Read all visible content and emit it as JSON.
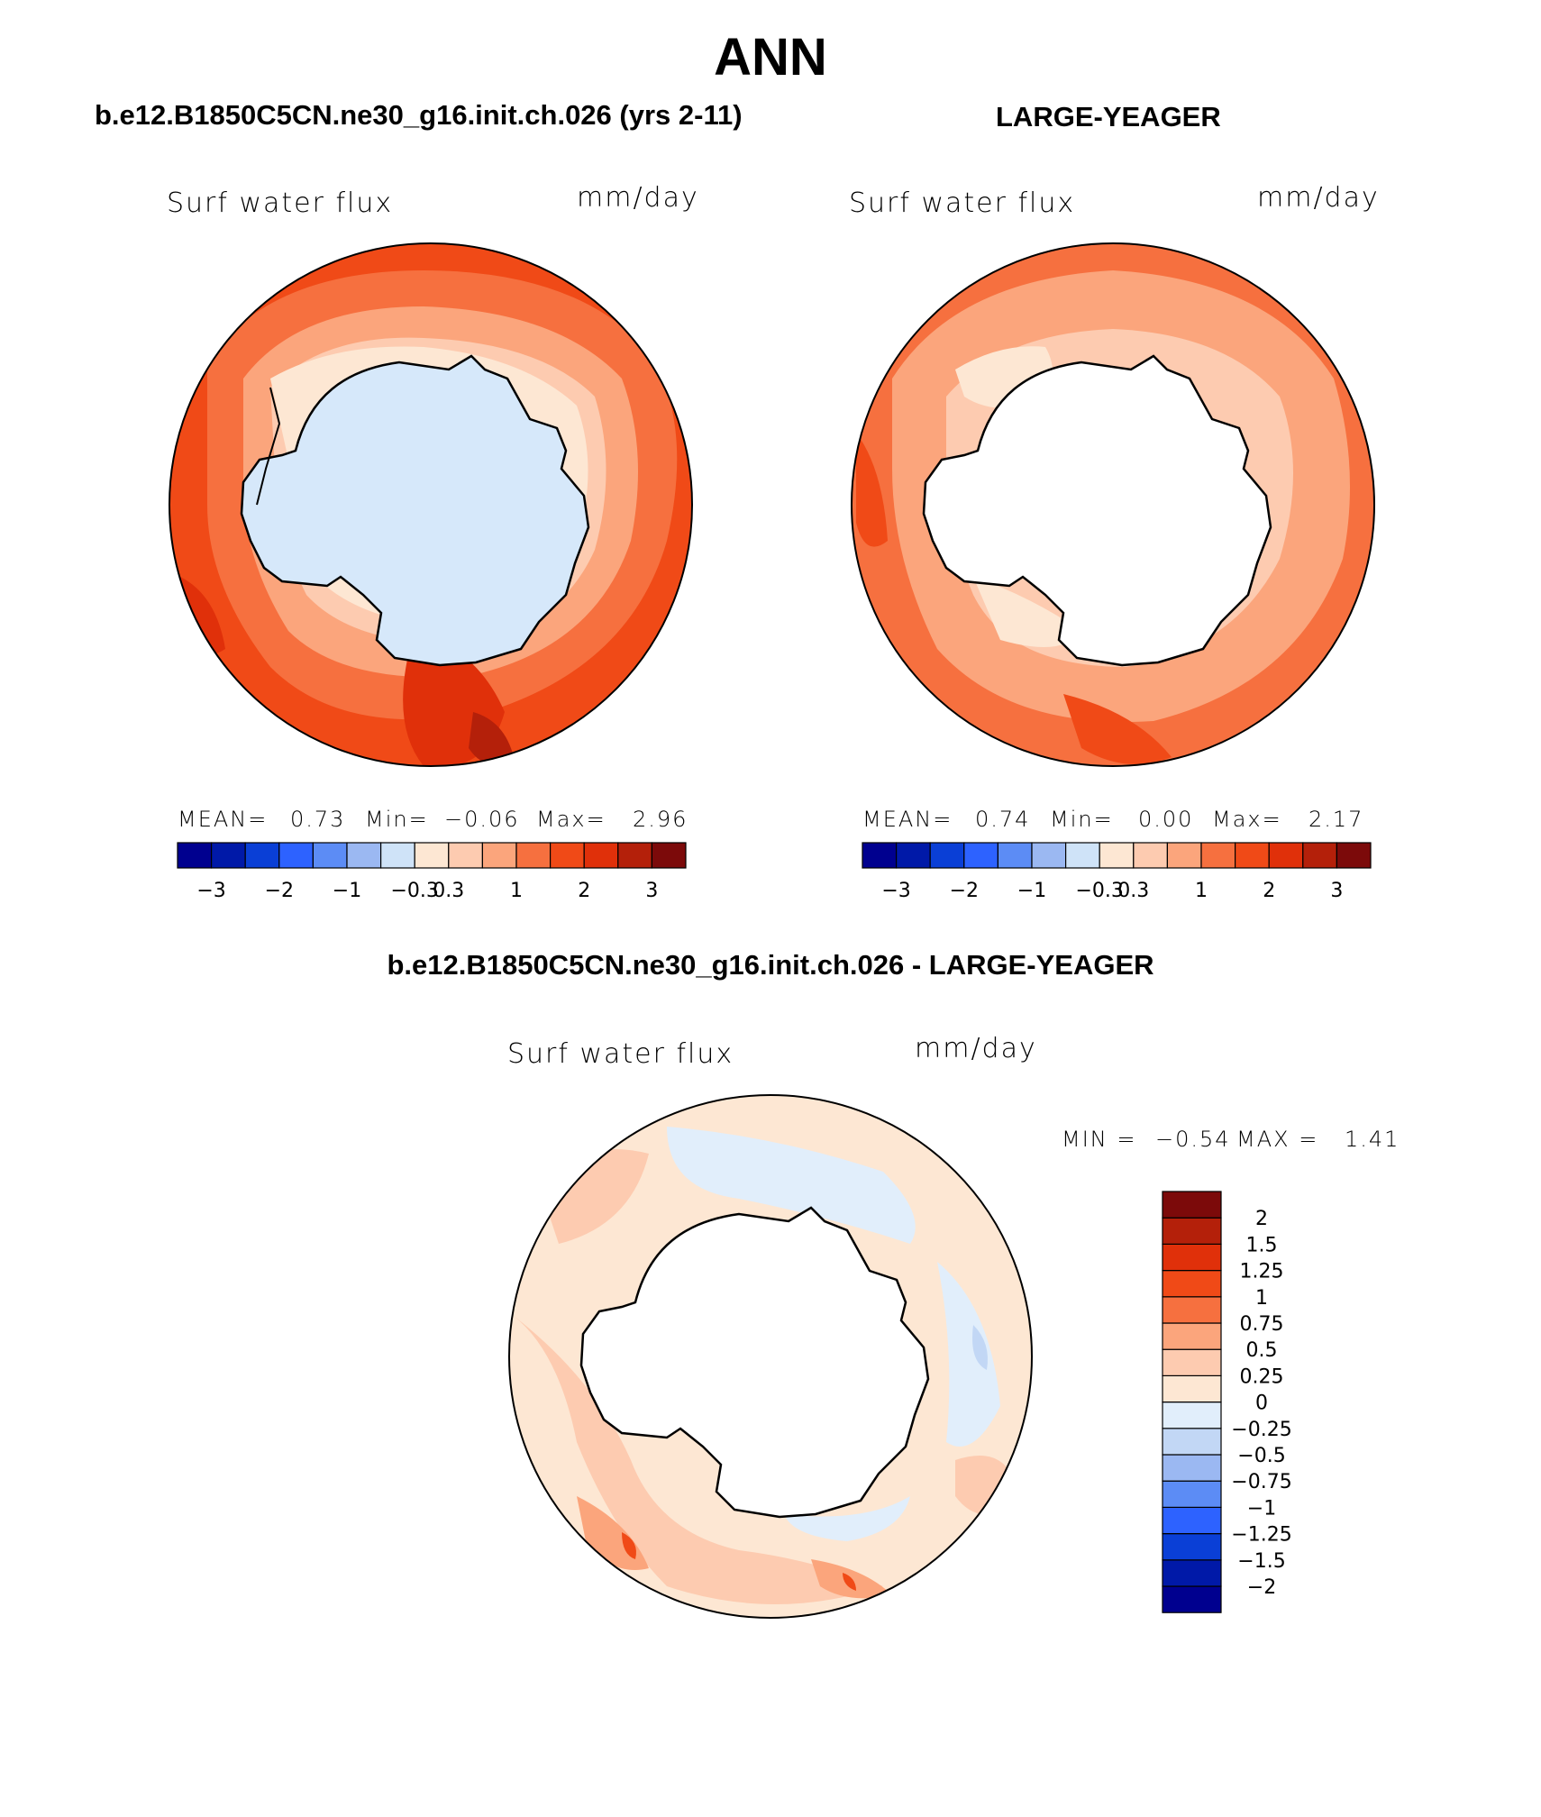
{
  "title": "ANN",
  "panels": [
    {
      "name": "b.e12.B1850C5CN.ne30_g16.init.ch.026 (yrs 2-11)",
      "variable": "Surf water flux",
      "units": "mm/day",
      "stats": {
        "mean_label": "MEAN=",
        "mean": "0.73",
        "min_label": "Min=",
        "min": "−0.06",
        "max_label": "Max=",
        "max": "2.96"
      }
    },
    {
      "name": "LARGE-YEAGER",
      "variable": "Surf water flux",
      "units": "mm/day",
      "stats": {
        "mean_label": "MEAN=",
        "mean": "0.74",
        "min_label": "Min=",
        "min": "0.00",
        "max_label": "Max=",
        "max": "2.17"
      }
    },
    {
      "name": "b.e12.B1850C5CN.ne30_g16.init.ch.026 - LARGE-YEAGER",
      "variable": "Surf water flux",
      "units": "mm/day",
      "stats": {
        "min_label": "MIN =",
        "min": "−0.54",
        "max_label": "MAX =",
        "max": "1.41"
      }
    }
  ],
  "colorbar_horizontal": {
    "colors": [
      "#00008f",
      "#0019a8",
      "#0a3fd6",
      "#2d62ff",
      "#5c8cf5",
      "#9bb8f2",
      "#cfe3f8",
      "#fde7d3",
      "#fdcbb0",
      "#fba57c",
      "#f6703f",
      "#f04a17",
      "#e0300a",
      "#b4200a",
      "#7c0a0a"
    ],
    "labels": [
      "−3",
      "−2",
      "−1",
      "−0.3",
      "0.3",
      "1",
      "2",
      "3"
    ]
  },
  "colorbar_vertical": {
    "colors": [
      "#00008f",
      "#0019a8",
      "#0a3fd6",
      "#2d62ff",
      "#5c8cf5",
      "#9bb8f2",
      "#c2d7f5",
      "#e1eefb",
      "#fde7d3",
      "#fdcbb0",
      "#fba57c",
      "#f6703f",
      "#f04a17",
      "#e0300a",
      "#b4200a",
      "#7c0a0a"
    ],
    "labels": [
      "2",
      "1.5",
      "1.25",
      "1",
      "0.75",
      "0.5",
      "0.25",
      "0",
      "−0.25",
      "−0.5",
      "−0.75",
      "−1",
      "−1.25",
      "−1.5",
      "−2"
    ]
  },
  "map_colors": {
    "ice_model": "#d6e8fa",
    "land_obs": "#ffffff",
    "c0": "#fde7d3",
    "c1": "#fdcbb0",
    "c2": "#fba57c",
    "c3": "#f6703f",
    "c4": "#f04a17",
    "c5": "#e0300a",
    "c6": "#b4200a",
    "d_neg1": "#e1eefb",
    "d_neg2": "#c2d7f5",
    "d_neg3": "#9bb8f2"
  }
}
